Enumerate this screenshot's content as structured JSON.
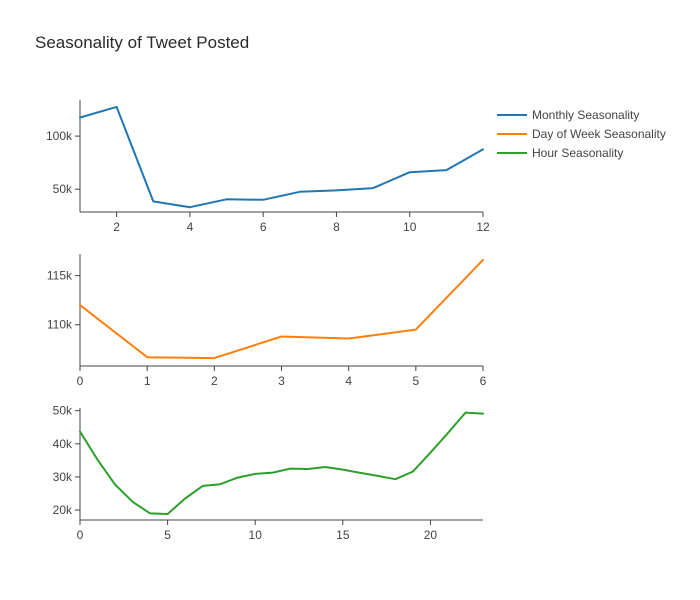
{
  "chart_data": {
    "title": "Seasonality of Tweet Posted",
    "type": "line",
    "legend_position": "top-right",
    "grid": false,
    "subplots": [
      {
        "name": "Monthly Seasonality",
        "color": "#1f77b4",
        "x": [
          1,
          2,
          3,
          4,
          5,
          6,
          7,
          8,
          9,
          10,
          11,
          12
        ],
        "y": [
          117500,
          127500,
          38500,
          33000,
          40500,
          40000,
          47500,
          48800,
          51000,
          66000,
          68000,
          87500
        ],
        "xlim": [
          1,
          12
        ],
        "ylim": [
          28500,
          134000
        ],
        "xticks": [
          2,
          4,
          6,
          8,
          10,
          12
        ],
        "xtick_labels": [
          "2",
          "4",
          "6",
          "8",
          "10",
          "12"
        ],
        "yticks": [
          50000,
          100000
        ],
        "ytick_labels": [
          "50k",
          "100k"
        ]
      },
      {
        "name": "Day of Week Seasonality",
        "color": "#ff7f0e",
        "x": [
          0,
          1,
          2,
          3,
          4,
          5,
          6
        ],
        "y": [
          112000,
          106700,
          106600,
          108800,
          108600,
          109500,
          116600
        ],
        "xlim": [
          0,
          6
        ],
        "ylim": [
          105800,
          117200
        ],
        "xticks": [
          0,
          1,
          2,
          3,
          4,
          5,
          6
        ],
        "xtick_labels": [
          "0",
          "1",
          "2",
          "3",
          "4",
          "5",
          "6"
        ],
        "yticks": [
          110000,
          115000
        ],
        "ytick_labels": [
          "110k",
          "115k"
        ]
      },
      {
        "name": "Hour Seasonality",
        "color": "#2ca02c",
        "x": [
          0,
          1,
          2,
          3,
          4,
          5,
          6,
          7,
          8,
          9,
          10,
          11,
          12,
          13,
          14,
          15,
          16,
          17,
          18,
          19,
          20,
          21,
          22,
          23
        ],
        "y": [
          43700,
          35200,
          27700,
          22500,
          19000,
          18800,
          23500,
          27300,
          27800,
          29800,
          30900,
          31300,
          32500,
          32400,
          33000,
          32200,
          31200,
          30300,
          29300,
          31600,
          37300,
          43300,
          49400,
          49100
        ],
        "xlim": [
          0,
          23
        ],
        "ylim": [
          17000,
          50800
        ],
        "xticks": [
          0,
          5,
          10,
          15,
          20
        ],
        "xtick_labels": [
          "0",
          "5",
          "10",
          "15",
          "20"
        ],
        "yticks": [
          20000,
          30000,
          40000,
          50000
        ],
        "ytick_labels": [
          "20k",
          "30k",
          "40k",
          "50k"
        ]
      }
    ]
  }
}
